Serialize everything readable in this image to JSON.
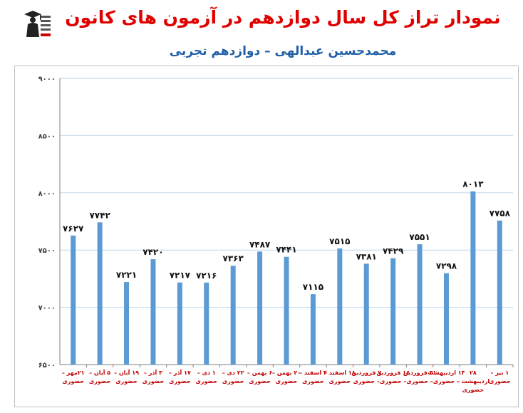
{
  "header": {
    "title": "نمودار تراز کل سال دوازدهم در آزمون های کانون",
    "subtitle": "محمدحسین عبدالهی – دوازدهم تجربی",
    "logo_icon": "graduate-logo-icon"
  },
  "colors": {
    "title": "#e00000",
    "subtitle": "#1f5fa8",
    "bar": "#5b9bd5",
    "category_label": "#c00000",
    "grid": "#bdd7ee"
  },
  "chart_data": {
    "type": "bar",
    "title": "نمودار تراز کل سال دوازدهم در آزمون های کانون",
    "subtitle": "محمدحسین عبدالهی – دوازدهم تجربی",
    "ylim": [
      6500,
      9000
    ],
    "yticks": [
      6500,
      7000,
      7500,
      8000,
      8500,
      9000
    ],
    "ytick_labels": [
      "۶۵۰۰",
      "۷۰۰۰",
      "۷۵۰۰",
      "۸۰۰۰",
      "۸۵۰۰",
      "۹۰۰۰"
    ],
    "grid": true,
    "legend": "none",
    "categories": [
      [
        "۲۱مهر –",
        "حضوری"
      ],
      [
        "۵ آبان –",
        "حضوری"
      ],
      [
        "۱۹ آبان –",
        "حضوری"
      ],
      [
        "۳ آذر –",
        "حضوری"
      ],
      [
        "۱۷ آذر –",
        "حضوری"
      ],
      [
        "۱ دی –",
        "حضوری"
      ],
      [
        "۲۲ دی –",
        "حضوری"
      ],
      [
        "۶ بهمن –",
        "حضوری"
      ],
      [
        "۲۰ بهمن –",
        "حضوری"
      ],
      [
        "۴ اسفند –",
        "حضوری"
      ],
      [
        "۱۸ اسفند –",
        "حضوری"
      ],
      [
        "۷ فروردین",
        "– حضوری"
      ],
      [
        "۱۶ فروردین",
        "– حضوری"
      ],
      [
        "۳۱ فروردین",
        "– حضوری"
      ],
      [
        "۱۴ اردیبهشت",
        "– حضوری"
      ],
      [
        "۲۸",
        "اردیبهشت –",
        "حضوری"
      ],
      [
        "۱ تیر –",
        "حضوری"
      ]
    ],
    "values": [
      7627,
      7742,
      7221,
      7420,
      7217,
      7216,
      7363,
      7487,
      7441,
      7115,
      7515,
      7381,
      7429,
      7551,
      7298,
      8013,
      7758
    ],
    "value_labels": [
      "۷۶۲۷",
      "۷۷۴۲",
      "۷۲۲۱",
      "۷۴۲۰",
      "۷۲۱۷",
      "۷۲۱۶",
      "۷۳۶۳",
      "۷۴۸۷",
      "۷۴۴۱",
      "۷۱۱۵",
      "۷۵۱۵",
      "۷۳۸۱",
      "۷۴۲۹",
      "۷۵۵۱",
      "۷۲۹۸",
      "۸۰۱۳",
      "۷۷۵۸"
    ]
  }
}
